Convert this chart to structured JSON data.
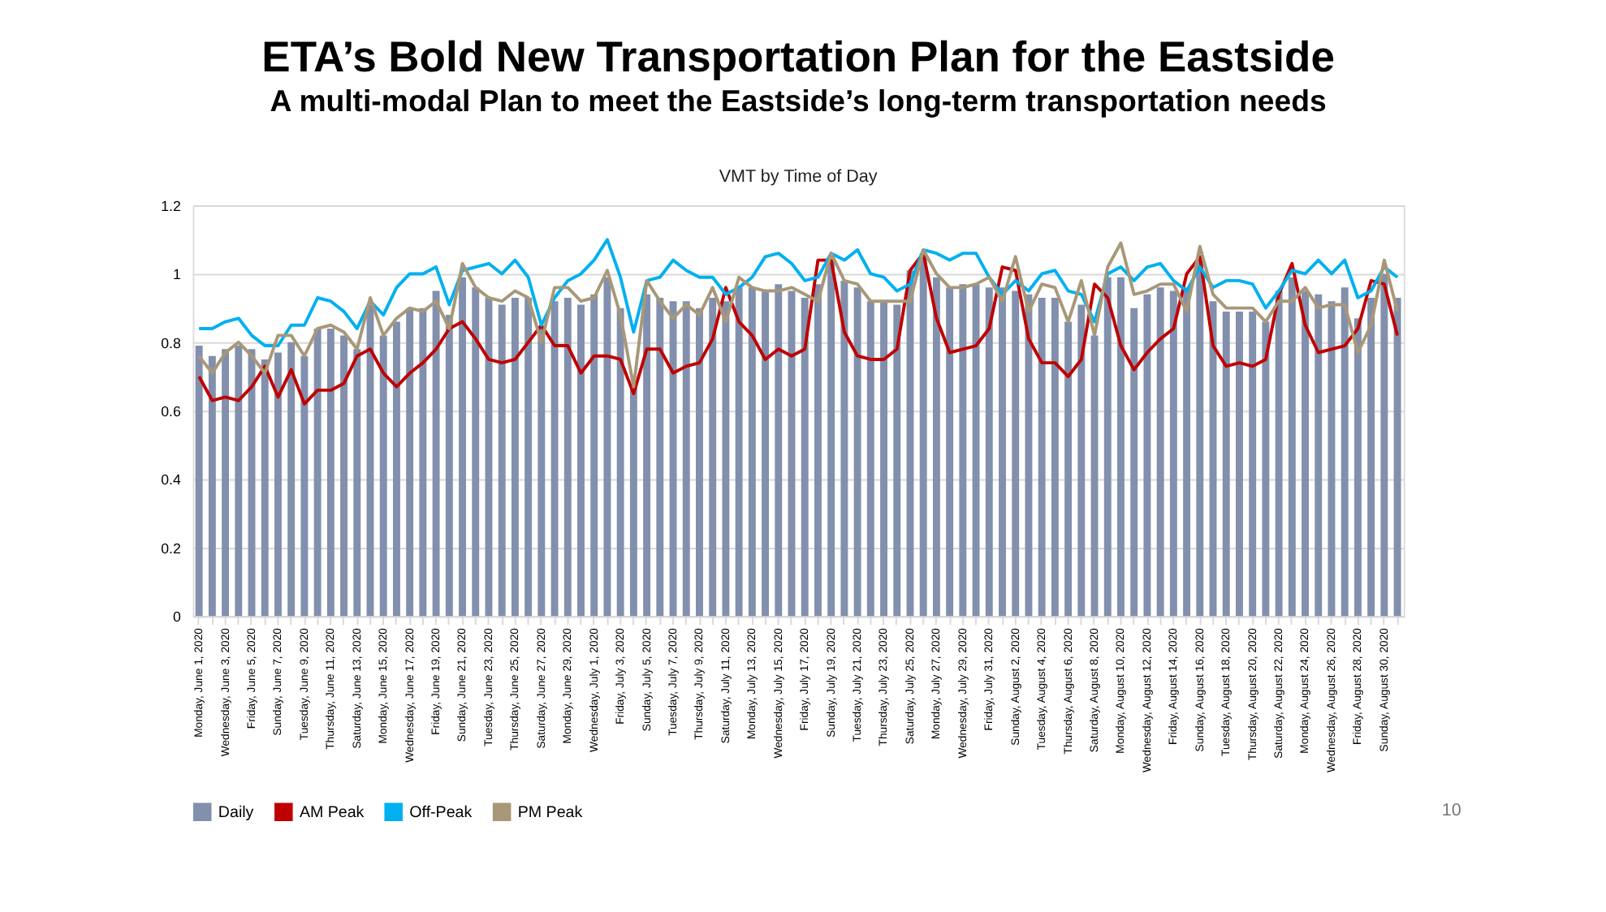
{
  "chart_data": {
    "type": "bar",
    "title": "ETA’s Bold New Transportation Plan for the Eastside",
    "subtitle": "A multi-modal Plan to meet the Eastside’s long-term transportation needs",
    "annotations": [
      "VMT by Time of Day",
      "10"
    ],
    "categories": [
      "Monday, June 1, 2020",
      null,
      "Wednesday, June 3, 2020",
      null,
      "Friday, June 5, 2020",
      null,
      "Sunday, June 7, 2020",
      null,
      "Tuesday, June 9, 2020",
      null,
      "Thursday, June 11, 2020",
      null,
      "Saturday, June 13, 2020",
      null,
      "Monday, June 15, 2020",
      null,
      "Wednesday, June 17, 2020",
      null,
      "Friday, June 19, 2020",
      null,
      "Sunday, June 21, 2020",
      null,
      "Tuesday, June 23, 2020",
      null,
      "Thursday, June 25, 2020",
      null,
      "Saturday, June 27, 2020",
      null,
      "Monday, June 29, 2020",
      null,
      "Wednesday, July 1, 2020",
      null,
      "Friday, July 3, 2020",
      null,
      "Sunday, July 5, 2020",
      null,
      "Tuesday, July 7, 2020",
      null,
      "Thursday, July 9, 2020",
      null,
      "Saturday, July 11, 2020",
      null,
      "Monday, July 13, 2020",
      null,
      "Wednesday, July 15, 2020",
      null,
      "Friday, July 17, 2020",
      null,
      "Sunday, July 19, 2020",
      null,
      "Tuesday, July 21, 2020",
      null,
      "Thursday, July 23, 2020",
      null,
      "Saturday, July 25, 2020",
      null,
      "Monday, July 27, 2020",
      null,
      "Wednesday, July 29, 2020",
      null,
      "Friday, July 31, 2020",
      null,
      "Sunday, August 2, 2020",
      null,
      "Tuesday, August 4, 2020",
      null,
      "Thursday, August 6, 2020",
      null,
      "Saturday, August 8, 2020",
      null,
      "Monday, August 10, 2020",
      null,
      "Wednesday, August 12, 2020",
      null,
      "Friday, August 14, 2020",
      null,
      "Sunday, August 16, 2020",
      null,
      "Tuesday, August 18, 2020",
      null,
      "Thursday, August 20, 2020",
      null,
      "Saturday, August 22, 2020",
      null,
      "Monday, August 24, 2020",
      null,
      "Wednesday, August 26, 2020",
      null,
      "Friday, August 28, 2020",
      null,
      "Sunday, August 30, 2020",
      null
    ],
    "series": [
      {
        "name": "Daily",
        "type": "bar",
        "color": "#8290ad",
        "values": [
          0.79,
          0.76,
          0.78,
          0.79,
          0.78,
          0.75,
          0.77,
          0.8,
          0.76,
          0.84,
          0.84,
          0.82,
          0.78,
          0.91,
          0.82,
          0.86,
          0.9,
          0.9,
          0.95,
          0.88,
          0.99,
          0.96,
          0.93,
          0.91,
          0.93,
          0.93,
          0.84,
          0.92,
          0.93,
          0.91,
          0.94,
          0.99,
          0.9,
          0.67,
          0.94,
          0.93,
          0.92,
          0.92,
          0.9,
          0.93,
          0.92,
          0.96,
          0.96,
          0.95,
          0.97,
          0.95,
          0.93,
          0.97,
          1.04,
          0.98,
          0.96,
          0.92,
          0.92,
          0.91,
          1.01,
          1.06,
          0.99,
          0.96,
          0.97,
          0.97,
          0.96,
          0.96,
          0.95,
          0.94,
          0.93,
          0.93,
          0.86,
          0.91,
          0.82,
          0.99,
          0.99,
          0.9,
          0.94,
          0.96,
          0.95,
          0.96,
          1.04,
          0.92,
          0.89,
          0.89,
          0.89,
          0.86,
          0.95,
          0.99,
          0.95,
          0.94,
          0.92,
          0.96,
          0.87,
          0.93,
          1.0,
          0.93
        ]
      },
      {
        "name": "AM Peak",
        "type": "line",
        "color": "#c00000",
        "values": [
          0.7,
          0.63,
          0.64,
          0.63,
          0.67,
          0.73,
          0.64,
          0.72,
          0.62,
          0.66,
          0.66,
          0.68,
          0.76,
          0.78,
          0.71,
          0.67,
          0.71,
          0.74,
          0.78,
          0.84,
          0.86,
          0.81,
          0.75,
          0.74,
          0.75,
          0.8,
          0.85,
          0.79,
          0.79,
          0.71,
          0.76,
          0.76,
          0.75,
          0.65,
          0.78,
          0.78,
          0.71,
          0.73,
          0.74,
          0.81,
          0.96,
          0.86,
          0.82,
          0.75,
          0.78,
          0.76,
          0.78,
          1.04,
          1.04,
          0.83,
          0.76,
          0.75,
          0.75,
          0.78,
          1.01,
          1.06,
          0.87,
          0.77,
          0.78,
          0.79,
          0.84,
          1.02,
          1.01,
          0.81,
          0.74,
          0.74,
          0.7,
          0.75,
          0.97,
          0.93,
          0.79,
          0.72,
          0.77,
          0.81,
          0.84,
          1.0,
          1.05,
          0.79,
          0.73,
          0.74,
          0.73,
          0.75,
          0.94,
          1.03,
          0.85,
          0.77,
          0.78,
          0.79,
          0.84,
          0.98,
          0.97,
          0.82
        ]
      },
      {
        "name": "Off-Peak",
        "type": "line",
        "color": "#00b0f0",
        "values": [
          0.84,
          0.84,
          0.86,
          0.87,
          0.82,
          0.79,
          0.79,
          0.85,
          0.85,
          0.93,
          0.92,
          0.89,
          0.84,
          0.92,
          0.88,
          0.96,
          1.0,
          1.0,
          1.02,
          0.91,
          1.01,
          1.02,
          1.03,
          1.0,
          1.04,
          0.99,
          0.85,
          0.93,
          0.98,
          1.0,
          1.04,
          1.1,
          0.99,
          0.83,
          0.98,
          0.99,
          1.04,
          1.01,
          0.99,
          0.99,
          0.94,
          0.96,
          0.99,
          1.05,
          1.06,
          1.03,
          0.98,
          0.99,
          1.06,
          1.04,
          1.07,
          1.0,
          0.99,
          0.95,
          0.97,
          1.07,
          1.06,
          1.04,
          1.06,
          1.06,
          0.99,
          0.94,
          0.98,
          0.95,
          1.0,
          1.01,
          0.95,
          0.94,
          0.86,
          1.0,
          1.02,
          0.98,
          1.02,
          1.03,
          0.98,
          0.95,
          1.02,
          0.96,
          0.98,
          0.98,
          0.97,
          0.9,
          0.95,
          1.01,
          1.0,
          1.04,
          1.0,
          1.04,
          0.93,
          0.95,
          1.02,
          0.99
        ]
      },
      {
        "name": "PM Peak",
        "type": "line",
        "color": "#a89878",
        "values": [
          0.76,
          0.71,
          0.77,
          0.8,
          0.76,
          0.71,
          0.82,
          0.82,
          0.76,
          0.84,
          0.85,
          0.83,
          0.78,
          0.93,
          0.82,
          0.87,
          0.9,
          0.89,
          0.92,
          0.84,
          1.03,
          0.96,
          0.93,
          0.92,
          0.95,
          0.93,
          0.8,
          0.96,
          0.96,
          0.92,
          0.93,
          1.01,
          0.88,
          0.67,
          0.98,
          0.92,
          0.87,
          0.91,
          0.88,
          0.96,
          0.86,
          0.99,
          0.96,
          0.95,
          0.95,
          0.96,
          0.94,
          0.92,
          1.06,
          0.98,
          0.97,
          0.92,
          0.92,
          0.92,
          0.92,
          1.07,
          1.0,
          0.96,
          0.96,
          0.97,
          0.99,
          0.92,
          1.05,
          0.89,
          0.97,
          0.96,
          0.86,
          0.98,
          0.82,
          1.02,
          1.09,
          0.94,
          0.95,
          0.97,
          0.97,
          0.89,
          1.08,
          0.94,
          0.9,
          0.9,
          0.9,
          0.86,
          0.92,
          0.92,
          0.96,
          0.9,
          0.91,
          0.91,
          0.77,
          0.85,
          1.04,
          0.89
        ]
      }
    ],
    "ylim": [
      0,
      1.2
    ],
    "yticks": [
      0,
      0.2,
      0.4,
      0.6,
      0.8,
      1,
      1.2
    ],
    "grid": "y",
    "legend": "bottom",
    "line_style": "solid",
    "marker": "none"
  }
}
